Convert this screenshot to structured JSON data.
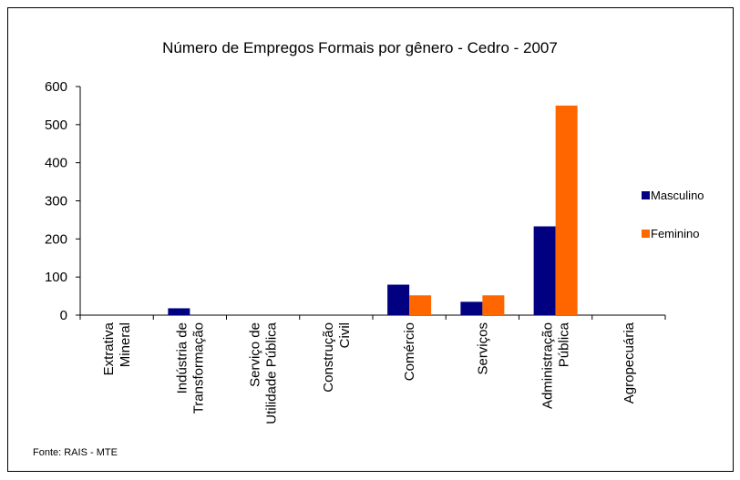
{
  "chart_data": {
    "type": "bar",
    "title": "Número de Empregos Formais por gênero - Cedro - 2007",
    "categories": [
      "Extrativa\nMineral",
      "Indústria de\nTransformação",
      "Serviço de\nUtilidade Pública",
      "Construção\nCivil",
      "Comércio",
      "Serviços",
      "Administração\nPública",
      "Agropecuária"
    ],
    "series": [
      {
        "name": "Masculino",
        "color": "#000080",
        "values": [
          0,
          18,
          0,
          0,
          80,
          35,
          233,
          0
        ]
      },
      {
        "name": "Feminino",
        "color": "#ff6600",
        "values": [
          0,
          0,
          0,
          0,
          52,
          52,
          550,
          0
        ]
      }
    ],
    "ylim": [
      0,
      600
    ],
    "yticks": [
      0,
      100,
      200,
      300,
      400,
      500,
      600
    ],
    "legend": "right",
    "note": "Fonte: RAIS - MTE"
  }
}
